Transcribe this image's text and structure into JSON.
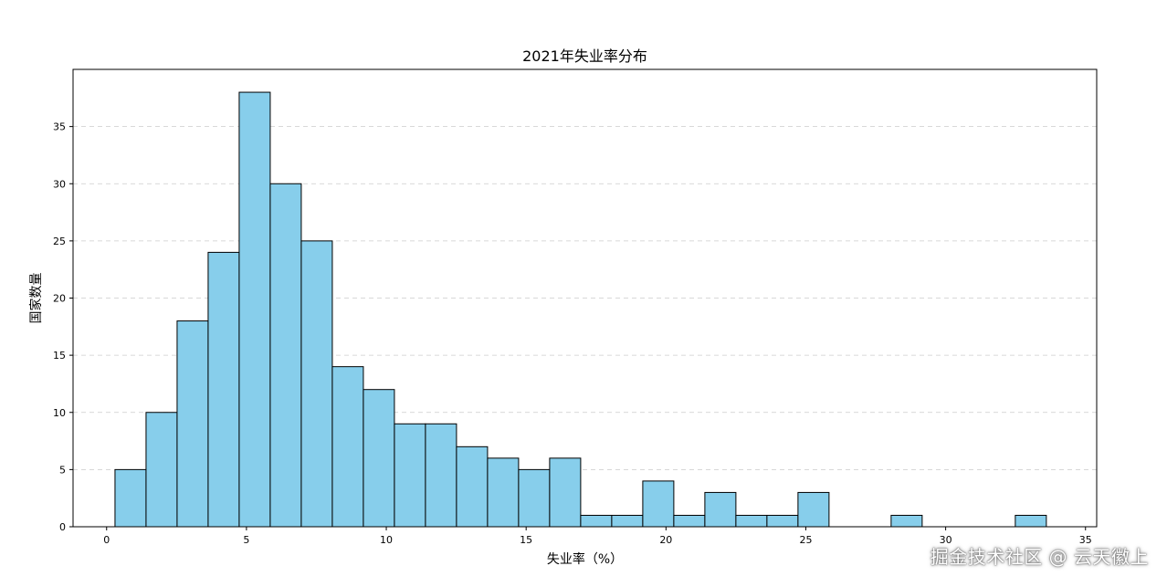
{
  "chart_data": {
    "type": "bar",
    "title": "2021年失业率分布",
    "xlabel": "失业率（%）",
    "ylabel": "国家数量",
    "xlim": [
      -1.2,
      35.4
    ],
    "ylim": [
      0,
      40
    ],
    "xticks": [
      0,
      5,
      10,
      15,
      20,
      25,
      30,
      35
    ],
    "yticks": [
      0,
      5,
      10,
      15,
      20,
      25,
      30,
      35
    ],
    "grid": "y-dashed",
    "bar_color": "#87CEEB",
    "edge_color": "#000000",
    "bin_edges": [
      0.3,
      1.41,
      2.52,
      3.63,
      4.74,
      5.85,
      6.96,
      8.07,
      9.18,
      10.29,
      11.4,
      12.51,
      13.62,
      14.73,
      15.84,
      16.95,
      18.06,
      19.17,
      20.28,
      21.39,
      22.5,
      23.61,
      24.72,
      25.83,
      26.94,
      28.05,
      29.16,
      30.27,
      31.38,
      32.49,
      33.6
    ],
    "values": [
      5,
      10,
      18,
      24,
      38,
      30,
      25,
      14,
      12,
      9,
      9,
      7,
      6,
      5,
      6,
      1,
      1,
      4,
      1,
      3,
      1,
      1,
      3,
      0,
      0,
      1,
      0,
      0,
      0,
      1
    ]
  },
  "watermark": "掘金技术社区 @ 云天徽上"
}
